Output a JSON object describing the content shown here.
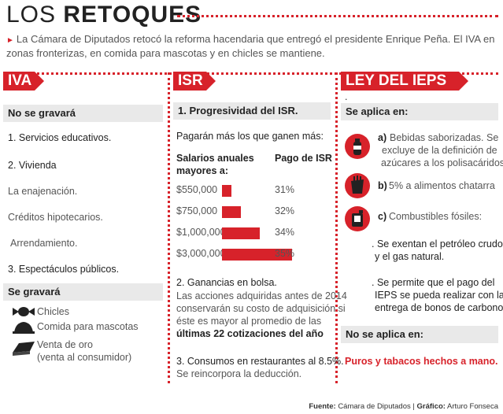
{
  "header": {
    "title_light": "LOS ",
    "title_bold": "RETOQUES",
    "intro": "La Cámara de Diputados retocó la reforma hacendaria que entregó el presidente Enrique Peña. El IVA en zonas fronterizas, en comida para mascotas y en chicles se mantiene."
  },
  "iva": {
    "tag": "IVA",
    "no_gravara": "No se gravará",
    "item1": "1. Servicios educativos.",
    "item2": "2. Vivienda",
    "enajenacion": "La enajenación.",
    "creditos": "Créditos hipotecarios.",
    "arrendamiento": "Arrendamiento.",
    "item3": "3. Espectáculos públicos.",
    "se_gravara": "Se gravará",
    "chicles": "Chicles",
    "comida": "Comida para mascotas",
    "oro1": "Venta de oro",
    "oro2": "(venta al consumidor)"
  },
  "isr": {
    "tag": "ISR",
    "sub": "1. Progresividad del ISR.",
    "pagaran": "Pagarán más los que ganen más:",
    "col1a": "Salarios anuales",
    "col1b": "mayores a:",
    "col2": "Pago de ISR",
    "g2_title": "2. Ganancias en bolsa.",
    "g2_l1": "Las acciones adquiridas antes de 2014",
    "g2_l2": "conservarán su costo de adquisición si",
    "g2_l3": "éste es mayor al promedio de las",
    "g2_l4": "últimas 22 cotizaciones del año",
    "g3_title": "3. Consumos en restaurantes al 8.5%.",
    "g3_l1": "Se reincorpora la deducción."
  },
  "chart_data": {
    "type": "bar",
    "categories": [
      "$550,000",
      "$750,000",
      "$1,000,000",
      "$3,000,000"
    ],
    "values": [
      31,
      32,
      34,
      35
    ],
    "value_labels": [
      "31%",
      "32%",
      "34%",
      "35%"
    ],
    "xlabel": "Salarios anuales mayores a:",
    "ylabel": "Pago de ISR"
  },
  "ieps": {
    "tag": "LEY DEL IEPS",
    "dot": ".",
    "aplica": "Se aplica en:",
    "a_label": "a)",
    "a_l1": "Bebidas saborizadas. Se",
    "a_l2": "excluye de la definición de",
    "a_l3": "azúcares a los polisacáridos.",
    "b_label": "b)",
    "b_text": "5% a alimentos chatarra",
    "c_label": "c)",
    "c_text": "Combustibles fósiles:",
    "p1_l1": ". Se exentan el petróleo crudo",
    "p1_l2": "y el gas natural.",
    "p2_l1": ". Se permite que el pago del",
    "p2_l2": "IEPS se pueda realizar con la",
    "p2_l3": "entrega de bonos de carbono.",
    "no_aplica": "No se aplica en:",
    "puros": "Puros y tabacos hechos a mano."
  },
  "footer": {
    "fuente_label": "Fuente:",
    "fuente": "Cámara de Diputados",
    "sep": "|",
    "grafico_label": "Gráfico:",
    "grafico": "Arturo Fonseca"
  },
  "colors": {
    "accent": "#d7222a",
    "subheader_bg": "#e9e9e9"
  }
}
